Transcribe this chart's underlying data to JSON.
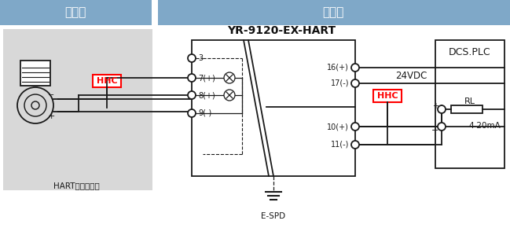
{
  "bg_color": "#ffffff",
  "header_left_color": "#7fa8c8",
  "header_right_color": "#7fa8c8",
  "gap_color": "#ffffff",
  "gray_area_color": "#d8d8d8",
  "header_left_text": "危险区",
  "header_right_text": "安全区",
  "device_label": "HART智能变送器",
  "module_label": "YR-9120-EX-HART",
  "dcs_label": "DCS.PLC",
  "espd_label": "E-SPD",
  "rl_label": "RL",
  "ma_label": "4-20mA",
  "vdc_label": "24VDC",
  "hhc_box_color": "#ff0000",
  "hhc_text": "HHC",
  "line_color": "#1a1a1a",
  "pin_color": "#1a1a1a"
}
